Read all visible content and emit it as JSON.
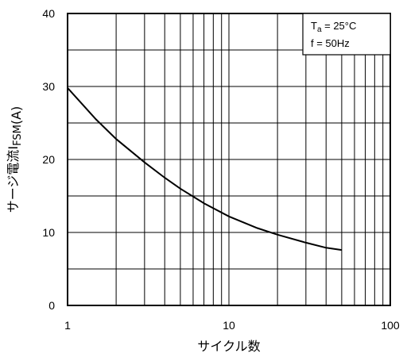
{
  "chart_data": {
    "type": "line",
    "title": "",
    "xlabel": "サイクル数",
    "ylabel": {
      "prefix": "サージ電流",
      "symbol": "I",
      "subscript": "FSM",
      "unit": "(A)"
    },
    "x_scale": "log",
    "xlim": [
      1,
      100
    ],
    "ylim": [
      0,
      40
    ],
    "x_ticks": [
      {
        "value": 1,
        "label": "1"
      },
      {
        "value": 10,
        "label": "10"
      },
      {
        "value": 100,
        "label": "100"
      }
    ],
    "y_ticks": [
      {
        "value": 0,
        "label": "0"
      },
      {
        "value": 10,
        "label": "10"
      },
      {
        "value": 20,
        "label": "20"
      },
      {
        "value": 30,
        "label": "30"
      },
      {
        "value": 40,
        "label": "40"
      }
    ],
    "grid": true,
    "legend": {
      "placement": "top-right",
      "line1": {
        "symbol": "T",
        "subscript": "a",
        "rest": " = 25°C"
      },
      "line2": "f = 50Hz"
    },
    "series": [
      {
        "x": [
          1,
          1.5,
          2,
          3,
          4,
          5,
          7,
          10,
          15,
          20,
          30,
          40,
          50
        ],
        "y": [
          29.8,
          25.5,
          22.8,
          19.6,
          17.5,
          16.0,
          14.0,
          12.2,
          10.6,
          9.7,
          8.6,
          7.9,
          7.6
        ]
      }
    ]
  }
}
